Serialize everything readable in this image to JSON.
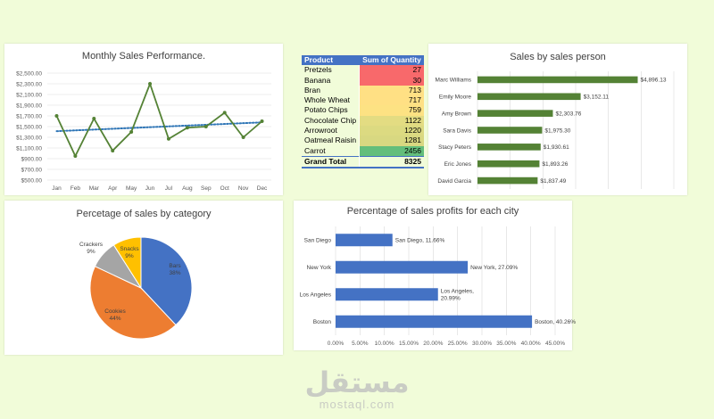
{
  "chart_data": [
    {
      "type": "line",
      "title": "Monthly Sales Performance.",
      "categories": [
        "Jan",
        "Feb",
        "Mar",
        "Apr",
        "May",
        "Jun",
        "Jul",
        "Aug",
        "Sep",
        "Oct",
        "Nov",
        "Dec"
      ],
      "values": [
        1700,
        950,
        1650,
        1050,
        1400,
        2300,
        1270,
        1480,
        1500,
        1760,
        1300,
        1600
      ],
      "trendline": "linear dotted",
      "ylim": [
        500,
        2500
      ],
      "yticks": [
        "$500.00",
        "$700.00",
        "$900.00",
        "$1,100.00",
        "$1,300.00",
        "$1,500.00",
        "$1,700.00",
        "$1,900.00",
        "$2,100.00",
        "$2,300.00",
        "$2,500.00"
      ],
      "colors": {
        "line": "#548235",
        "trend": "#2e75b6"
      }
    },
    {
      "type": "table",
      "headers": [
        "Product",
        "Sum of Quantity"
      ],
      "rows": [
        {
          "name": "Pretzels",
          "qty": "27",
          "color": "#f8696b"
        },
        {
          "name": "Banana",
          "qty": "30",
          "color": "#f8696b"
        },
        {
          "name": "Bran",
          "qty": "713",
          "color": "#ffe084"
        },
        {
          "name": "Whole Wheat",
          "qty": "717",
          "color": "#ffe084"
        },
        {
          "name": "Potato Chips",
          "qty": "759",
          "color": "#fde283"
        },
        {
          "name": "Chocolate Chip",
          "qty": "1122",
          "color": "#e3dc82"
        },
        {
          "name": "Arrowroot",
          "qty": "1220",
          "color": "#dcda81"
        },
        {
          "name": "Oatmeal Raisin",
          "qty": "1281",
          "color": "#d8d881"
        },
        {
          "name": "Carrot",
          "qty": "2456",
          "color": "#63be7b"
        }
      ],
      "total": {
        "label": "Grand Total",
        "qty": "8325"
      }
    },
    {
      "type": "bar",
      "orientation": "horizontal",
      "title": "Sales by sales person",
      "categories": [
        "Marc Williams",
        "Emily Moore",
        "Amy Brown",
        "Sara Davis",
        "Stacy Peters",
        "Eric Jones",
        "David Garcia"
      ],
      "values": [
        4896.13,
        3152.11,
        2303.76,
        1975.3,
        1930.61,
        1893.26,
        1837.49
      ],
      "labels": [
        "$4,896.13",
        "$3,152.11",
        "$2,303.76",
        "$1,975.30",
        "$1,930.61",
        "$1,893.26",
        "$1,837.49"
      ],
      "xlim": [
        0,
        6000
      ],
      "color": "#548235"
    },
    {
      "type": "pie",
      "title": "Percetage of sales by category",
      "slices": [
        {
          "label": "Bars",
          "pct": "38%",
          "value": 38,
          "color": "#4472c4"
        },
        {
          "label": "Cookies",
          "pct": "44%",
          "value": 44,
          "color": "#ed7d31"
        },
        {
          "label": "Crackers",
          "pct": "9%",
          "value": 9,
          "color": "#a5a5a5"
        },
        {
          "label": "Snacks",
          "pct": "9%",
          "value": 9,
          "color": "#ffc000"
        }
      ]
    },
    {
      "type": "bar",
      "orientation": "horizontal",
      "title": "Percentage of sales profits for each city",
      "categories": [
        "San Diego",
        "New York",
        "Los Angeles",
        "Boston"
      ],
      "values": [
        11.66,
        27.09,
        20.99,
        40.26
      ],
      "labels": [
        [
          "San Diego, 11.66%"
        ],
        [
          "New York, 27.09%"
        ],
        [
          "Los Angeles,",
          "20.99%"
        ],
        [
          "Boston, 40.26%"
        ]
      ],
      "xlim": [
        0,
        45
      ],
      "xticks": [
        "0.00%",
        "5.00%",
        "10.00%",
        "15.00%",
        "20.00%",
        "25.00%",
        "30.00%",
        "35.00%",
        "40.00%",
        "45.00%"
      ],
      "color": "#4472c4"
    }
  ],
  "watermark": {
    "arabic": "مستقل",
    "latin": "mostaql.com"
  }
}
